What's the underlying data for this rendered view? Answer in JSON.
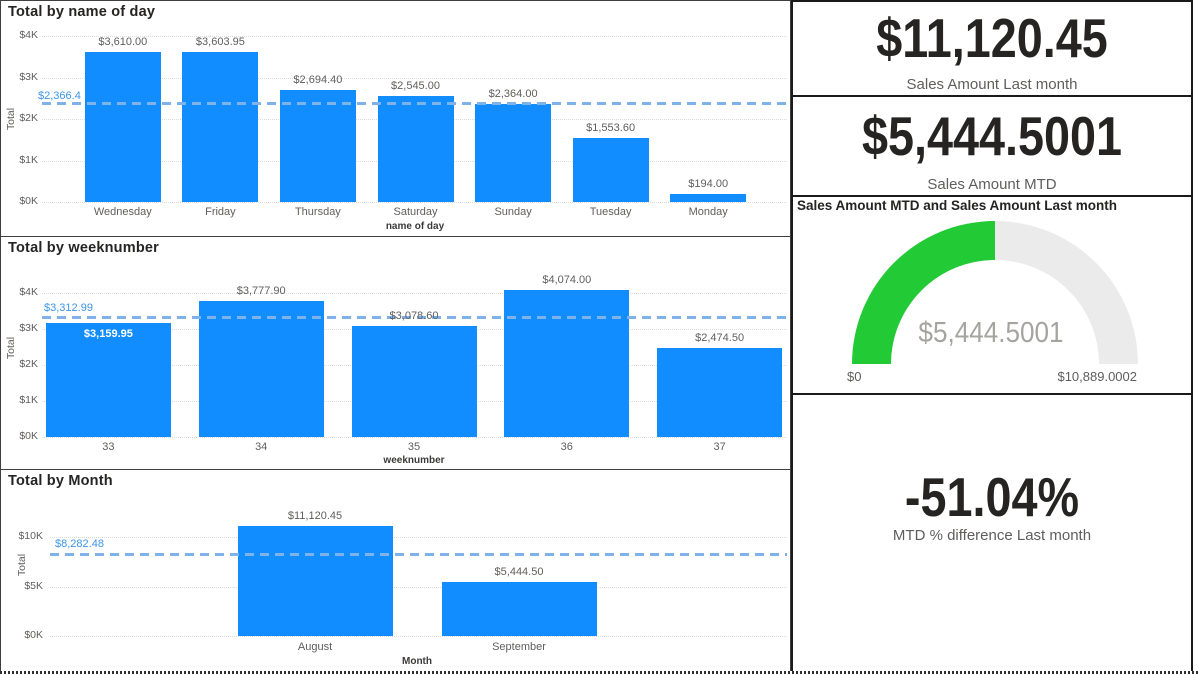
{
  "theme": {
    "bar_color": "#118DFF",
    "ref_line_color": "#7FB2E8",
    "ref_label_color": "#3D95E8",
    "gridline_color": "#DCDCDC",
    "text_dark": "#252423",
    "text_gray": "#605E5C",
    "gauge_fill": "#22CB35",
    "gauge_track": "#EBEBEB",
    "gauge_value_color": "#A6A4A1",
    "panel_border": "#1A1A1A"
  },
  "cards": [
    {
      "value": "$11,120.45",
      "label": "Sales Amount Last month"
    },
    {
      "value": "$5,444.5001",
      "label": "Sales Amount MTD"
    },
    {
      "value": "-51.04%",
      "label": "MTD % difference Last month"
    }
  ],
  "gauge": {
    "title": "Sales Amount MTD and Sales Amount Last month",
    "value": 5444.5001,
    "min": 0,
    "max": 10889.0002,
    "value_label": "$5,444.5001",
    "min_label": "$0",
    "max_label": "$10,889.0002"
  },
  "chart_data": [
    {
      "type": "bar",
      "title": "Total by name of day",
      "xlabel": "name of day",
      "ylabel": "Total",
      "categories": [
        "Wednesday",
        "Friday",
        "Thursday",
        "Saturday",
        "Sunday",
        "Tuesday",
        "Monday"
      ],
      "values": [
        3610.0,
        3603.95,
        2694.4,
        2545.0,
        2364.0,
        1553.6,
        194.0
      ],
      "value_labels": [
        "$3,610.00",
        "$3,603.95",
        "$2,694.40",
        "$2,545.00",
        "$2,364.00",
        "$1,553.60",
        "$194.00"
      ],
      "yticks": [
        {
          "v": 0,
          "label": "$0K"
        },
        {
          "v": 1000,
          "label": "$1K"
        },
        {
          "v": 2000,
          "label": "$2K"
        },
        {
          "v": 3000,
          "label": "$3K"
        },
        {
          "v": 4000,
          "label": "$4K"
        }
      ],
      "ylim": [
        0,
        4000
      ],
      "grid": true,
      "ref_line": {
        "value": 2366.4,
        "label": "$2,366.4"
      }
    },
    {
      "type": "bar",
      "title": "Total by weeknumber",
      "xlabel": "weeknumber",
      "ylabel": "Total",
      "categories": [
        "33",
        "34",
        "35",
        "36",
        "37"
      ],
      "values": [
        3159.95,
        3777.9,
        3078.6,
        4074.0,
        2474.5
      ],
      "value_labels": [
        "$3,159.95",
        "$3,777.90",
        "$3,078.60",
        "$4,074.00",
        "$2,474.50"
      ],
      "yticks": [
        {
          "v": 0,
          "label": "$0K"
        },
        {
          "v": 1000,
          "label": "$1K"
        },
        {
          "v": 2000,
          "label": "$2K"
        },
        {
          "v": 3000,
          "label": "$3K"
        },
        {
          "v": 4000,
          "label": "$4K"
        }
      ],
      "ylim": [
        0,
        4000
      ],
      "grid": true,
      "ref_line": {
        "value": 3312.99,
        "label": "$3,312.99"
      }
    },
    {
      "type": "bar",
      "title": "Total by Month",
      "xlabel": "Month",
      "ylabel": "Total",
      "categories": [
        "August",
        "September"
      ],
      "values": [
        11120.45,
        5444.5
      ],
      "value_labels": [
        "$11,120.45",
        "$5,444.50"
      ],
      "yticks": [
        {
          "v": 0,
          "label": "$0K"
        },
        {
          "v": 5000,
          "label": "$5K"
        },
        {
          "v": 10000,
          "label": "$10K"
        }
      ],
      "ylim": [
        0,
        11200
      ],
      "grid": true,
      "ref_line": {
        "value": 8282.48,
        "label": "$8,282.48"
      }
    }
  ]
}
